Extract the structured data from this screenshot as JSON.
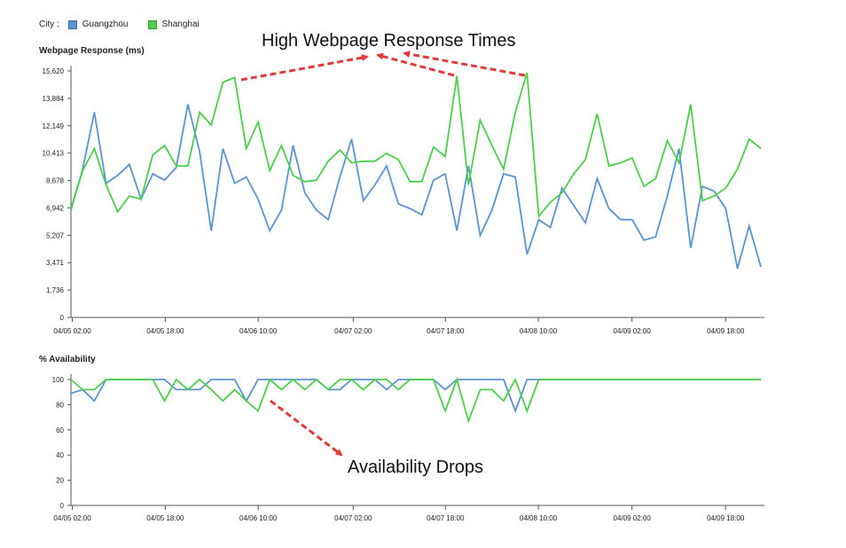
{
  "legend": {
    "label": "City :",
    "items": [
      {
        "name": "Guangzhou",
        "color": "#5b93d3"
      },
      {
        "name": "Shanghai",
        "color": "#4cce4c"
      }
    ]
  },
  "annotations": {
    "top": "High Webpage Response Times",
    "bottom": "Availability Drops",
    "arrow_color": "#e03a3a"
  },
  "chart_data": [
    {
      "type": "line",
      "ylabel": "Webpage Response (ms)",
      "ylim": [
        0,
        15620
      ],
      "yticks": [
        "0",
        "1,736",
        "3,471",
        "5,207",
        "6,942",
        "8,678",
        "10,413",
        "12,149",
        "13,884",
        "15,620"
      ],
      "xticks": [
        "04/05 02:00",
        "04/05 18:00",
        "04/06 10:00",
        "04/07 02:00",
        "04/07 18:00",
        "04/08 10:00",
        "04/09 02:00",
        "04/09 18:00"
      ],
      "series": [
        {
          "name": "Guangzhou",
          "color": "#5b93d3",
          "values": [
            6800,
            9400,
            13000,
            8500,
            9000,
            9700,
            7500,
            9100,
            8700,
            9500,
            13500,
            10500,
            5500,
            10700,
            8500,
            8900,
            7500,
            5500,
            6800,
            10900,
            7900,
            6800,
            6200,
            8900,
            11300,
            7400,
            8400,
            9600,
            7200,
            6900,
            6500,
            8700,
            9100,
            5500,
            9600,
            5200,
            6800,
            9100,
            8900,
            4000,
            6200,
            5700,
            8200,
            7100,
            6000,
            8800,
            6900,
            6200,
            6200,
            4900,
            5100,
            7700,
            10700,
            4400,
            8300,
            8000,
            6900,
            3100,
            5800,
            3200
          ]
        },
        {
          "name": "Shanghai",
          "color": "#4cce4c",
          "values": [
            6900,
            9300,
            10700,
            8400,
            6700,
            7700,
            7500,
            10300,
            10900,
            9600,
            9600,
            13000,
            12200,
            14900,
            15200,
            10700,
            12400,
            9300,
            10900,
            9000,
            8600,
            8700,
            9900,
            10600,
            9800,
            9900,
            9900,
            10400,
            10000,
            8600,
            8600,
            10800,
            10200,
            15300,
            8400,
            12500,
            10900,
            9400,
            13000,
            15500,
            6400,
            7300,
            7900,
            9100,
            10000,
            12900,
            9600,
            9800,
            10100,
            8300,
            8800,
            11200,
            9800,
            13500,
            7400,
            7700,
            8200,
            9400,
            11300,
            10700
          ]
        }
      ]
    },
    {
      "type": "line",
      "ylabel": "% Availability",
      "ylim": [
        0,
        100
      ],
      "yticks": [
        "0",
        "20",
        "40",
        "60",
        "80",
        "100"
      ],
      "xticks": [
        "04/05 02:00",
        "04/05 18:00",
        "04/06 10:00",
        "04/07 02:00",
        "04/07 18:00",
        "04/08 10:00",
        "04/09 02:00",
        "04/09 18:00"
      ],
      "series": [
        {
          "name": "Guangzhou",
          "color": "#5b93d3",
          "values": [
            89,
            92,
            83,
            100,
            100,
            100,
            100,
            100,
            100,
            92,
            92,
            92,
            100,
            100,
            100,
            83,
            100,
            100,
            100,
            100,
            100,
            100,
            92,
            92,
            100,
            100,
            100,
            92,
            100,
            100,
            100,
            100,
            92,
            100,
            100,
            100,
            100,
            100,
            75,
            100,
            100,
            100,
            100,
            100,
            100,
            100,
            100,
            100,
            100,
            100,
            100,
            100,
            100,
            100,
            100,
            100,
            100,
            100,
            100,
            100
          ]
        },
        {
          "name": "Shanghai",
          "color": "#4cce4c",
          "values": [
            100,
            92,
            92,
            100,
            100,
            100,
            100,
            100,
            83,
            100,
            92,
            100,
            92,
            83,
            92,
            83,
            75,
            100,
            92,
            100,
            92,
            100,
            92,
            100,
            100,
            92,
            100,
            100,
            92,
            100,
            100,
            100,
            75,
            100,
            67,
            92,
            92,
            83,
            100,
            75,
            100,
            100,
            100,
            100,
            100,
            100,
            100,
            100,
            100,
            100,
            100,
            100,
            100,
            100,
            100,
            100,
            100,
            100,
            100,
            100
          ]
        }
      ]
    }
  ]
}
